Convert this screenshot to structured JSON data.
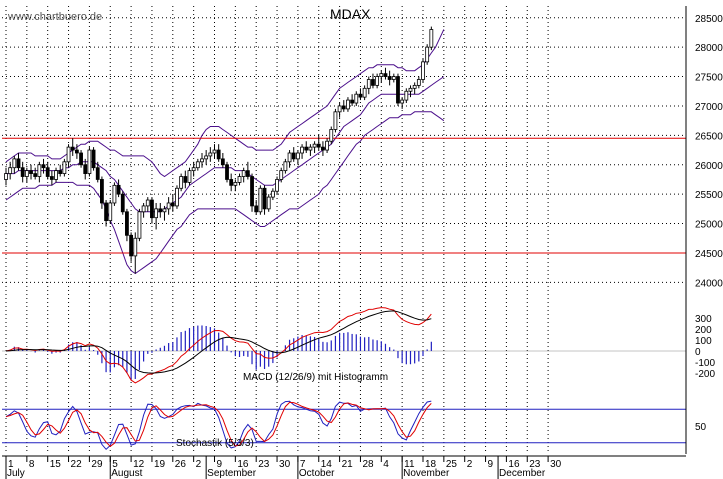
{
  "watermark": "www.chartbuero.de",
  "title": "MDAX",
  "chart_data": {
    "type": "candlestick",
    "price": {
      "ylim": [
        23700,
        28700
      ],
      "yticks": [
        "28500",
        "28000",
        "27500",
        "27000",
        "26500",
        "26000",
        "25500",
        "25000",
        "24500",
        "24000"
      ],
      "horizontal_lines": [
        26450,
        24500
      ],
      "candles": [
        [
          25750,
          25950,
          25650,
          25850
        ],
        [
          25850,
          26050,
          25750,
          25950
        ],
        [
          25950,
          26150,
          25850,
          26100
        ],
        [
          26100,
          26200,
          25900,
          25950
        ],
        [
          25950,
          26050,
          25700,
          25800
        ],
        [
          25800,
          25950,
          25700,
          25900
        ],
        [
          25900,
          26000,
          25750,
          25850
        ],
        [
          25850,
          25950,
          25750,
          25800
        ],
        [
          25800,
          26050,
          25700,
          26000
        ],
        [
          26000,
          26100,
          25850,
          25950
        ],
        [
          25950,
          26050,
          25750,
          25800
        ],
        [
          25800,
          25900,
          25650,
          25750
        ],
        [
          25750,
          25950,
          25700,
          25900
        ],
        [
          25900,
          26000,
          25800,
          25850
        ],
        [
          25850,
          26100,
          25800,
          26050
        ],
        [
          26050,
          26350,
          25950,
          26300
        ],
        [
          26300,
          26450,
          26150,
          26250
        ],
        [
          26250,
          26350,
          26100,
          26200
        ],
        [
          26200,
          26250,
          25950,
          26000
        ],
        [
          26000,
          26100,
          25750,
          25850
        ],
        [
          25850,
          26300,
          25800,
          26250
        ],
        [
          26250,
          26300,
          25900,
          25950
        ],
        [
          25950,
          26050,
          25700,
          25750
        ],
        [
          25750,
          25800,
          25250,
          25350
        ],
        [
          25350,
          25400,
          24950,
          25050
        ],
        [
          25050,
          25400,
          25000,
          25350
        ],
        [
          25350,
          25700,
          25300,
          25650
        ],
        [
          25650,
          25750,
          25450,
          25500
        ],
        [
          25500,
          25550,
          25150,
          25200
        ],
        [
          25200,
          25250,
          24700,
          24800
        ],
        [
          24800,
          24850,
          24350,
          24450
        ],
        [
          24450,
          24850,
          24150,
          24750
        ],
        [
          24750,
          25250,
          24700,
          25200
        ],
        [
          25200,
          25350,
          25100,
          25300
        ],
        [
          25300,
          25450,
          25200,
          25400
        ],
        [
          25400,
          25450,
          25000,
          25100
        ],
        [
          25100,
          25350,
          24900,
          25250
        ],
        [
          25250,
          25350,
          25100,
          25200
        ],
        [
          25200,
          25300,
          25050,
          25250
        ],
        [
          25250,
          25450,
          25150,
          25350
        ],
        [
          25350,
          25500,
          25200,
          25300
        ],
        [
          25300,
          25650,
          25250,
          25600
        ],
        [
          25600,
          25850,
          25550,
          25800
        ],
        [
          25800,
          25900,
          25600,
          25700
        ],
        [
          25700,
          25950,
          25650,
          25900
        ],
        [
          25900,
          26050,
          25800,
          25950
        ],
        [
          25950,
          26100,
          25900,
          26050
        ],
        [
          26050,
          26200,
          25950,
          26100
        ],
        [
          26100,
          26250,
          26000,
          26150
        ],
        [
          26150,
          26300,
          26050,
          26200
        ],
        [
          26200,
          26350,
          26100,
          26250
        ],
        [
          26250,
          26350,
          26050,
          26100
        ],
        [
          26100,
          26200,
          25950,
          26000
        ],
        [
          26000,
          26050,
          25700,
          25750
        ],
        [
          25750,
          25850,
          25550,
          25650
        ],
        [
          25650,
          25750,
          25550,
          25700
        ],
        [
          25700,
          25850,
          25650,
          25800
        ],
        [
          25800,
          25950,
          25700,
          25900
        ],
        [
          25900,
          26050,
          25750,
          25800
        ],
        [
          25800,
          25850,
          25200,
          25300
        ],
        [
          25300,
          25400,
          25150,
          25200
        ],
        [
          25200,
          25650,
          25150,
          25600
        ],
        [
          25600,
          25650,
          25150,
          25250
        ],
        [
          25250,
          25500,
          25200,
          25450
        ],
        [
          25450,
          25600,
          25400,
          25550
        ],
        [
          25550,
          25800,
          25500,
          25750
        ],
        [
          25750,
          25950,
          25700,
          25900
        ],
        [
          25900,
          26100,
          25850,
          26050
        ],
        [
          26050,
          26250,
          25950,
          26200
        ],
        [
          26200,
          26300,
          26050,
          26100
        ],
        [
          26100,
          26250,
          26000,
          26200
        ],
        [
          26200,
          26350,
          26100,
          26300
        ],
        [
          26300,
          26400,
          26200,
          26250
        ],
        [
          26250,
          26350,
          26150,
          26300
        ],
        [
          26300,
          26400,
          26200,
          26350
        ],
        [
          26350,
          26500,
          26250,
          26300
        ],
        [
          26300,
          26400,
          26150,
          26250
        ],
        [
          26250,
          26450,
          26200,
          26400
        ],
        [
          26400,
          26650,
          26350,
          26600
        ],
        [
          26600,
          26950,
          26550,
          26900
        ],
        [
          26900,
          27050,
          26800,
          27000
        ],
        [
          27000,
          27100,
          26900,
          26950
        ],
        [
          26950,
          27150,
          26900,
          27100
        ],
        [
          27100,
          27200,
          27000,
          27050
        ],
        [
          27050,
          27250,
          27000,
          27200
        ],
        [
          27200,
          27300,
          27100,
          27150
        ],
        [
          27150,
          27350,
          27100,
          27300
        ],
        [
          27300,
          27500,
          27200,
          27450
        ],
        [
          27450,
          27550,
          27300,
          27350
        ],
        [
          27350,
          27550,
          27300,
          27500
        ],
        [
          27500,
          27600,
          27400,
          27550
        ],
        [
          27550,
          27650,
          27450,
          27500
        ],
        [
          27500,
          27600,
          27350,
          27450
        ],
        [
          27450,
          27550,
          27400,
          27500
        ],
        [
          27500,
          27550,
          27000,
          27050
        ],
        [
          27050,
          27150,
          26950,
          27100
        ],
        [
          27100,
          27300,
          27050,
          27250
        ],
        [
          27250,
          27350,
          27150,
          27300
        ],
        [
          27300,
          27400,
          27200,
          27350
        ],
        [
          27350,
          27500,
          27300,
          27450
        ],
        [
          27450,
          27800,
          27400,
          27750
        ],
        [
          27750,
          28050,
          27700,
          28000
        ],
        [
          28000,
          28350,
          27950,
          28300
        ]
      ],
      "bollinger_upper": [
        26050,
        26100,
        26150,
        26200,
        26200,
        26200,
        26200,
        26150,
        26150,
        26150,
        26150,
        26100,
        26100,
        26100,
        26150,
        26200,
        26250,
        26300,
        26350,
        26350,
        26400,
        26400,
        26400,
        26350,
        26300,
        26250,
        26250,
        26200,
        26150,
        26150,
        26150,
        26150,
        26150,
        26150,
        26100,
        26050,
        25950,
        25850,
        25800,
        25850,
        25900,
        25950,
        26000,
        26050,
        26150,
        26250,
        26350,
        26500,
        26600,
        26650,
        26650,
        26650,
        26600,
        26550,
        26500,
        26450,
        26400,
        26350,
        26300,
        26300,
        26250,
        26250,
        26250,
        26250,
        26250,
        26300,
        26350,
        26450,
        26550,
        26600,
        26650,
        26700,
        26750,
        26800,
        26850,
        26900,
        26950,
        27000,
        27100,
        27200,
        27300,
        27350,
        27400,
        27450,
        27500,
        27550,
        27600,
        27650,
        27650,
        27700,
        27700,
        27700,
        27700,
        27700,
        27650,
        27650,
        27600,
        27600,
        27600,
        27650,
        27700,
        27800,
        27900,
        28000,
        28150,
        28300
      ],
      "bollinger_middle": [
        25850,
        25850,
        25850,
        25900,
        25900,
        25900,
        25900,
        25900,
        25900,
        25900,
        25900,
        25900,
        25900,
        25900,
        25950,
        25950,
        26000,
        26000,
        26050,
        26050,
        26050,
        26050,
        26000,
        25950,
        25900,
        25800,
        25750,
        25650,
        25550,
        25450,
        25350,
        25250,
        25200,
        25200,
        25200,
        25200,
        25200,
        25200,
        25250,
        25300,
        25350,
        25400,
        25450,
        25550,
        25650,
        25700,
        25750,
        25800,
        25850,
        25900,
        25950,
        25950,
        25950,
        25950,
        25950,
        25900,
        25900,
        25900,
        25850,
        25800,
        25750,
        25700,
        25650,
        25650,
        25650,
        25700,
        25750,
        25800,
        25850,
        25900,
        25950,
        26000,
        26050,
        26100,
        26150,
        26200,
        26250,
        26300,
        26350,
        26450,
        26550,
        26650,
        26700,
        26750,
        26800,
        26850,
        26950,
        27050,
        27100,
        27150,
        27200,
        27200,
        27200,
        27200,
        27200,
        27200,
        27200,
        27200,
        27200,
        27200,
        27250,
        27300,
        27350,
        27400,
        27450,
        27500
      ],
      "bollinger_lower": [
        25400,
        25450,
        25500,
        25550,
        25600,
        25600,
        25600,
        25600,
        25650,
        25650,
        25650,
        25650,
        25700,
        25700,
        25700,
        25700,
        25700,
        25650,
        25650,
        25650,
        25650,
        25600,
        25500,
        25400,
        25250,
        25050,
        24900,
        24700,
        24500,
        24300,
        24200,
        24150,
        24200,
        24250,
        24300,
        24350,
        24400,
        24500,
        24600,
        24700,
        24800,
        24900,
        24950,
        25050,
        25150,
        25200,
        25250,
        25250,
        25250,
        25250,
        25250,
        25250,
        25250,
        25250,
        25250,
        25250,
        25200,
        25150,
        25100,
        25050,
        25000,
        24950,
        24950,
        25000,
        25050,
        25100,
        25150,
        25200,
        25250,
        25250,
        25250,
        25300,
        25350,
        25400,
        25450,
        25500,
        25600,
        25650,
        25750,
        25850,
        25950,
        26050,
        26150,
        26250,
        26350,
        26400,
        26500,
        26550,
        26600,
        26650,
        26700,
        26750,
        26800,
        26800,
        26800,
        26850,
        26850,
        26850,
        26900,
        26900,
        26900,
        26900,
        26900,
        26850,
        26800,
        26750
      ]
    },
    "macd": {
      "ylim": [
        -300,
        300
      ],
      "yticks": [
        "300",
        "200",
        "100",
        "0",
        "-100",
        "-200"
      ],
      "label": "MACD (12/26/9) mit Histogramm"
    },
    "stochastic": {
      "ylim": [
        0,
        100
      ],
      "yticks": [
        "50"
      ],
      "upper_level": 80,
      "lower_level": 20,
      "label": "Stochastik (5/3/3)"
    },
    "x_ticks": [
      "1",
      "8",
      "15",
      "22",
      "29",
      "5",
      "12",
      "19",
      "26",
      "2",
      "9",
      "16",
      "23",
      "30",
      "7",
      "14",
      "21",
      "28",
      "4",
      "11",
      "18",
      "25",
      "2",
      "9",
      "16",
      "23",
      "30"
    ],
    "month_labels": [
      "July",
      "August",
      "September",
      "October",
      "November",
      "December"
    ]
  }
}
